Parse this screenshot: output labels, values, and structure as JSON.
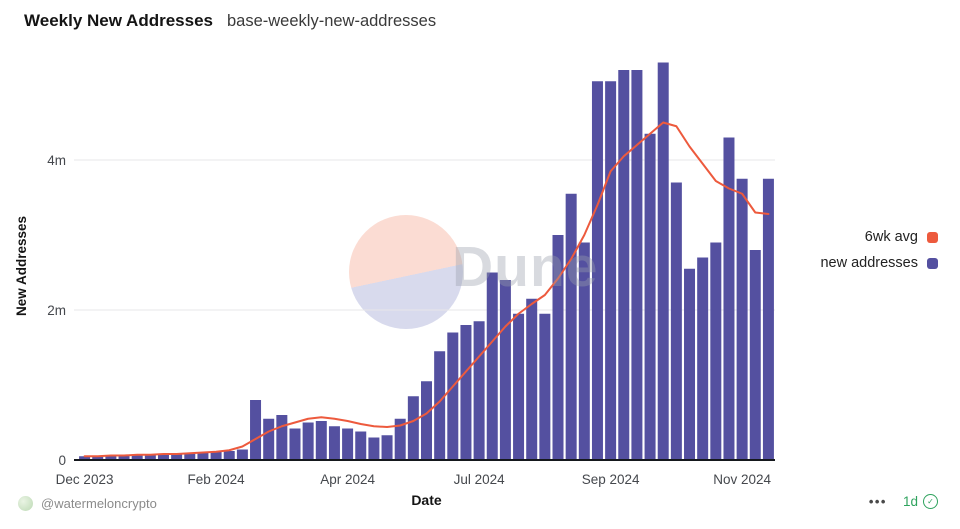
{
  "header": {
    "title": "Weekly New Addresses",
    "subtitle": "base-weekly-new-addresses"
  },
  "chart_data": {
    "type": "bar",
    "title": "Weekly New Addresses",
    "xlabel": "Date",
    "ylabel": "New Addresses",
    "unit": "millions of new addresses per week",
    "x_frequency": "weekly",
    "x_start": "Dec 2023",
    "x_end": "Nov 2024",
    "ylim": [
      0,
      5.6
    ],
    "grid": "horizontal",
    "legend_position": "right",
    "y_ticks": [
      "0",
      "2m",
      "4m"
    ],
    "y_tick_values": [
      0,
      2,
      4
    ],
    "x_ticks": [
      {
        "label": "Dec 2023",
        "week": 0
      },
      {
        "label": "Feb 2024",
        "week": 10
      },
      {
        "label": "Apr 2024",
        "week": 20
      },
      {
        "label": "Jul 2024",
        "week": 30
      },
      {
        "label": "Sep 2024",
        "week": 40
      },
      {
        "label": "Nov 2024",
        "week": 50
      }
    ],
    "series": [
      {
        "name": "new addresses",
        "type": "bar",
        "color": "#5450a0",
        "values": [
          0.05,
          0.05,
          0.06,
          0.06,
          0.07,
          0.07,
          0.08,
          0.08,
          0.09,
          0.1,
          0.11,
          0.12,
          0.14,
          0.8,
          0.55,
          0.6,
          0.42,
          0.5,
          0.52,
          0.45,
          0.42,
          0.38,
          0.3,
          0.33,
          0.55,
          0.85,
          1.05,
          1.45,
          1.7,
          1.8,
          1.85,
          2.5,
          2.4,
          1.95,
          2.15,
          1.95,
          3.0,
          3.55,
          2.9,
          5.05,
          5.05,
          5.2,
          5.2,
          4.35,
          5.3,
          3.7,
          2.55,
          2.7,
          2.9,
          4.3,
          3.75,
          2.8,
          3.75
        ]
      },
      {
        "name": "6wk avg",
        "type": "line",
        "color": "#ed5a3d",
        "values": [
          0.05,
          0.05,
          0.06,
          0.06,
          0.07,
          0.07,
          0.08,
          0.08,
          0.09,
          0.1,
          0.11,
          0.13,
          0.18,
          0.28,
          0.38,
          0.45,
          0.5,
          0.55,
          0.57,
          0.55,
          0.52,
          0.48,
          0.45,
          0.44,
          0.46,
          0.52,
          0.62,
          0.78,
          0.98,
          1.18,
          1.38,
          1.58,
          1.78,
          1.95,
          2.08,
          2.2,
          2.42,
          2.68,
          3.0,
          3.4,
          3.85,
          4.05,
          4.2,
          4.35,
          4.5,
          4.45,
          4.18,
          3.95,
          3.72,
          3.62,
          3.55,
          3.3,
          3.28
        ]
      }
    ]
  },
  "watermark": {
    "text": "Dune"
  },
  "footer": {
    "author": "@watermeloncrypto",
    "menu_icon": "•••",
    "freshness_label": "1d",
    "check_icon": "✓"
  }
}
